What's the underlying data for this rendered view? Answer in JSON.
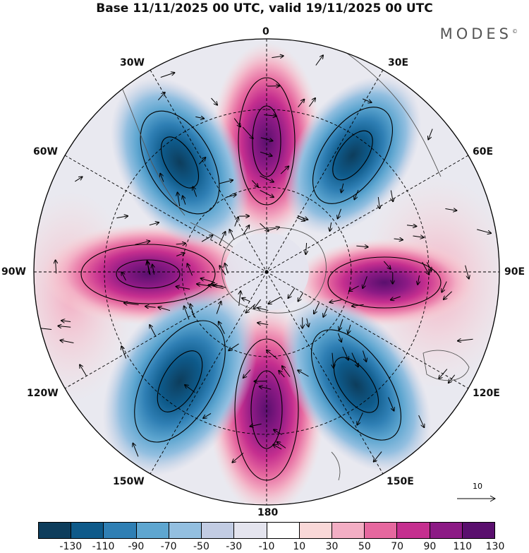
{
  "title": "Base 11/11/2025 00 UTC, valid 19/11/2025 00 UTC",
  "brand": "MODES",
  "brand_mark": "©",
  "longitude_labels": {
    "n": "0",
    "ne": "30E",
    "ene": "60E",
    "e": "90E",
    "ese": "120E",
    "se": "150E",
    "s": "180",
    "sw": "150W",
    "wsw": "120W",
    "w": "90W",
    "wnw": "60W",
    "nw": "30W"
  },
  "reference_vector": {
    "label": "10"
  },
  "colorbar": {
    "colors": [
      "#0d3d5c",
      "#0e5a8a",
      "#2f7fb4",
      "#5ea6d0",
      "#93bfe0",
      "#c2cce3",
      "#e4e4ee",
      "#ffffff",
      "#f9d8d8",
      "#f3aec4",
      "#e6689f",
      "#c52f8f",
      "#8c1a85",
      "#5a0f6e"
    ],
    "ticks": [
      "-130",
      "-110",
      "-90",
      "-70",
      "-50",
      "-30",
      "-10",
      "10",
      "30",
      "50",
      "70",
      "90",
      "110",
      "130"
    ]
  },
  "colors": {
    "positive_core": "#7a167e",
    "negative_core": "#0e4a6e",
    "land_outline": "#555555"
  }
}
